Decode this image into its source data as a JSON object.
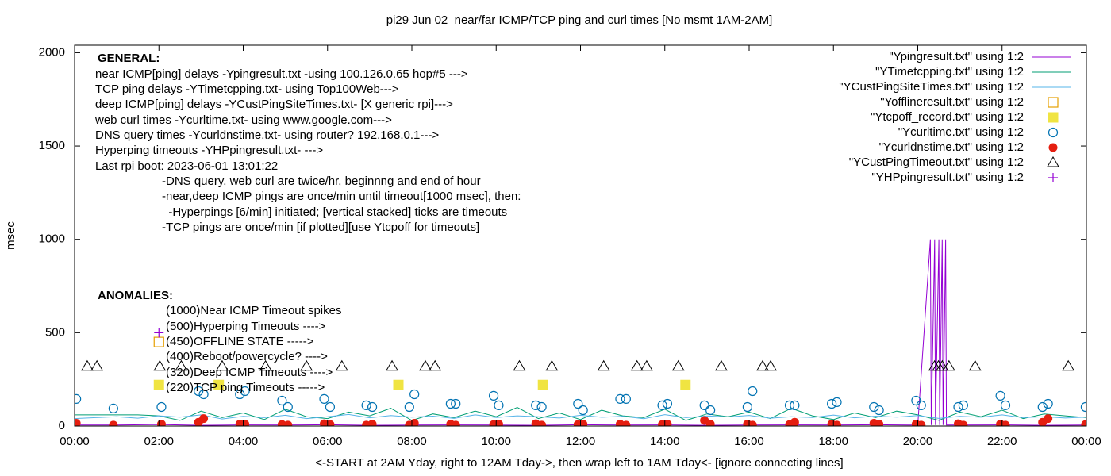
{
  "chart_data": {
    "type": "line",
    "title": "pi29 Jun 02  near/far ICMP/TCP ping and curl times [No msmt 1AM-2AM]",
    "x_label": "<-START at 2AM Yday, right to 12AM Tday->, then wrap left to 1AM Tday<- [ignore connecting lines]",
    "y_label": "msec",
    "xlim": [
      0,
      24
    ],
    "ylim": [
      0,
      2040
    ],
    "xticks": [
      {
        "value": 0,
        "label": "00:00"
      },
      {
        "value": 2,
        "label": "02:00"
      },
      {
        "value": 4,
        "label": "04:00"
      },
      {
        "value": 6,
        "label": "06:00"
      },
      {
        "value": 8,
        "label": "08:00"
      },
      {
        "value": 10,
        "label": "10:00"
      },
      {
        "value": 12,
        "label": "12:00"
      },
      {
        "value": 14,
        "label": "14:00"
      },
      {
        "value": 16,
        "label": "16:00"
      },
      {
        "value": 18,
        "label": "18:00"
      },
      {
        "value": 20,
        "label": "20:00"
      },
      {
        "value": 22,
        "label": "22:00"
      },
      {
        "value": 24,
        "label": "00:00"
      }
    ],
    "yticks": [
      0,
      500,
      1000,
      1500,
      2000
    ],
    "legend": "top-right",
    "annotations": [
      "GENERAL:",
      "near ICMP[ping] delays -Ypingresult.txt -using 100.126.0.65 hop#5 --->",
      "TCP ping delays -YTimetcpping.txt- using Top100Web--->",
      "deep ICMP[ping] delays -YCustPingSiteTimes.txt- [X generic rpi]--->",
      "web curl times -Ycurltime.txt- using www.google.com--->",
      "DNS query times -Ycurldnstime.txt- using router? 192.168.0.1--->",
      "Hyperping timeouts -YHPpingresult.txt- --->",
      "Last rpi boot: 2023-06-01 13:01:22",
      "-DNS query, web curl are twice/hr, beginnng and end of hour",
      "-near,deep ICMP pings are once/min until timeout[1000 msec], then:",
      "  -Hyperpings [6/min] initiated; [vertical stacked] ticks are timeouts",
      "-TCP pings are once/min [if plotted][use Ytcpoff for timeouts]",
      "ANOMALIES:",
      "(1000)Near ICMP Timeout spikes",
      "(500)Hyperping Timeouts ---->",
      "(450)OFFLINE STATE ----->",
      "(400)Reboot/powercycle? ---->",
      "(320)Deep ICMP Timeouts ---->",
      "(220)TCP ping Timeouts ----->"
    ],
    "series": [
      {
        "name": "\"Ypingresult.txt\" using 1:2",
        "style": "line",
        "color": "#9400d3",
        "x": [
          0,
          1,
          2,
          3,
          4,
          5,
          6,
          7,
          8,
          9,
          10,
          11,
          12,
          13,
          14,
          15,
          16,
          17,
          18,
          19,
          20,
          20.3,
          20.32,
          20.4,
          20.42,
          20.5,
          20.52,
          20.58,
          20.6,
          20.66,
          20.68,
          21,
          22,
          23,
          24
        ],
        "values": [
          5,
          5,
          8,
          4,
          6,
          5,
          7,
          4,
          5,
          6,
          5,
          4,
          7,
          5,
          6,
          4,
          5,
          6,
          5,
          7,
          5,
          1000,
          5,
          1000,
          5,
          1000,
          5,
          1000,
          5,
          1000,
          5,
          5,
          6,
          4,
          5
        ]
      },
      {
        "name": "\"YTimetcpping.txt\" using 1:2",
        "style": "line",
        "color": "#009e73",
        "x": [
          0,
          0.5,
          1,
          1.5,
          2,
          2.5,
          3,
          3.5,
          4,
          4.5,
          5,
          5.5,
          6,
          6.5,
          7,
          7.5,
          8,
          8.5,
          9,
          9.5,
          10,
          10.5,
          11,
          11.5,
          12,
          12.5,
          13,
          13.5,
          14,
          14.5,
          15,
          15.5,
          16,
          16.5,
          17,
          17.5,
          18,
          18.5,
          19,
          19.5,
          20,
          20.5,
          21,
          21.5,
          22,
          22.5,
          23,
          23.5,
          24
        ],
        "values": [
          60,
          60,
          60,
          60,
          55,
          30,
          80,
          45,
          70,
          35,
          90,
          50,
          40,
          75,
          55,
          95,
          30,
          65,
          45,
          80,
          50,
          100,
          40,
          70,
          35,
          85,
          55,
          45,
          90,
          30,
          65,
          50,
          75,
          40,
          95,
          55,
          35,
          70,
          45,
          80,
          60,
          30,
          75,
          50,
          85,
          40,
          65,
          55,
          45
        ]
      },
      {
        "name": "\"YCustPingSiteTimes.txt\" using 1:2",
        "style": "line",
        "color": "#56b4e9",
        "x": [
          0,
          0.5,
          1,
          1.5,
          2,
          2.5,
          3,
          3.5,
          4,
          4.5,
          5,
          5.5,
          6,
          6.5,
          7,
          7.5,
          8,
          8.5,
          9,
          9.5,
          10,
          10.5,
          11,
          11.5,
          12,
          12.5,
          13,
          13.5,
          14,
          14.5,
          15,
          15.5,
          16,
          16.5,
          17,
          17.5,
          18,
          18.5,
          19,
          19.5,
          20,
          20.5,
          21,
          21.5,
          22,
          22.5,
          23,
          23.5,
          24
        ],
        "values": [
          40,
          45,
          50,
          42,
          55,
          48,
          60,
          38,
          52,
          45,
          58,
          40,
          50,
          62,
          44,
          56,
          48,
          53,
          41,
          60,
          46,
          55,
          50,
          43,
          58,
          47,
          52,
          39,
          61,
          45,
          54,
          49,
          57,
          42,
          50,
          46,
          59,
          44,
          53,
          48,
          56,
          41,
          52,
          47,
          60,
          45,
          50,
          43,
          48
        ]
      },
      {
        "name": "\"Yofflineresult.txt\" using 1:2",
        "style": "square-open",
        "color": "#e69f00",
        "x": [
          2.0
        ],
        "values": [
          450
        ]
      },
      {
        "name": "\"Ytcpoff_record.txt\" using 1:2",
        "style": "square-filled",
        "color": "#f0e442",
        "x": [
          2.0,
          3.42,
          7.68,
          11.11,
          14.49
        ],
        "values": [
          220,
          220,
          220,
          220,
          220
        ]
      },
      {
        "name": "\"Ycurltime.txt\" using 1:2",
        "style": "circle-open",
        "color": "#0072b2",
        "x": [
          0.04,
          0.92,
          2.06,
          2.94,
          3.06,
          3.92,
          4.04,
          4.92,
          5.06,
          5.92,
          6.06,
          6.92,
          7.06,
          7.94,
          8.06,
          8.92,
          9.04,
          9.94,
          10.06,
          10.94,
          11.08,
          11.94,
          12.06,
          12.94,
          13.08,
          13.94,
          14.06,
          14.94,
          15.08,
          15.96,
          16.08,
          16.96,
          17.08,
          17.96,
          18.08,
          18.96,
          19.08,
          19.96,
          20.08,
          20.96,
          21.08,
          21.96,
          22.08,
          22.96,
          23.09,
          23.98
        ],
        "values": [
          145,
          94,
          102,
          187,
          170,
          170,
          187,
          136,
          102,
          145,
          102,
          111,
          102,
          102,
          170,
          119,
          119,
          162,
          111,
          111,
          102,
          119,
          85,
          145,
          145,
          111,
          119,
          111,
          85,
          102,
          187,
          111,
          111,
          119,
          128,
          102,
          85,
          136,
          111,
          102,
          111,
          162,
          111,
          102,
          119,
          102
        ]
      },
      {
        "name": "\"Ycurldnstime.txt\" using 1:2",
        "style": "circle-filled",
        "color": "#e51e10",
        "x": [
          0.04,
          0.92,
          2.06,
          2.94,
          3.06,
          3.92,
          4.04,
          4.92,
          5.06,
          5.92,
          6.06,
          6.92,
          7.06,
          7.94,
          8.06,
          8.92,
          9.04,
          9.94,
          10.06,
          10.94,
          11.08,
          11.94,
          12.06,
          12.94,
          13.08,
          13.94,
          14.06,
          14.94,
          15.08,
          15.96,
          16.08,
          16.96,
          17.08,
          17.96,
          18.08,
          18.96,
          19.08,
          19.96,
          20.08,
          20.96,
          21.08,
          21.96,
          22.08,
          22.96,
          23.09,
          23.98
        ],
        "values": [
          15,
          5,
          10,
          20,
          40,
          10,
          10,
          8,
          5,
          12,
          8,
          5,
          10,
          5,
          15,
          10,
          5,
          8,
          10,
          12,
          5,
          8,
          10,
          10,
          5,
          8,
          10,
          30,
          10,
          10,
          5,
          8,
          20,
          10,
          5,
          15,
          10,
          10,
          5,
          12,
          5,
          10,
          5,
          20,
          40,
          8
        ]
      },
      {
        "name": "\"YCustPingTimeout.txt\" using 1:2",
        "style": "triangle-open",
        "color": "#000000",
        "x": [
          0.3,
          0.53,
          2.02,
          2.53,
          3.5,
          4.53,
          5.5,
          6.34,
          7.53,
          8.32,
          8.55,
          10.55,
          11.32,
          12.55,
          13.34,
          13.57,
          14.32,
          15.34,
          16.32,
          16.51,
          20.4,
          20.49,
          20.58,
          20.74,
          21.36,
          23.57
        ],
        "values": [
          320,
          320,
          320,
          320,
          320,
          320,
          320,
          320,
          320,
          320,
          320,
          320,
          320,
          320,
          320,
          320,
          320,
          320,
          320,
          320,
          320,
          320,
          320,
          320,
          320,
          320
        ]
      },
      {
        "name": "\"YHPpingresult.txt\" using 1:2",
        "style": "plus",
        "color": "#9400d3",
        "x": [
          2.0
        ],
        "values": [
          500
        ]
      }
    ]
  }
}
